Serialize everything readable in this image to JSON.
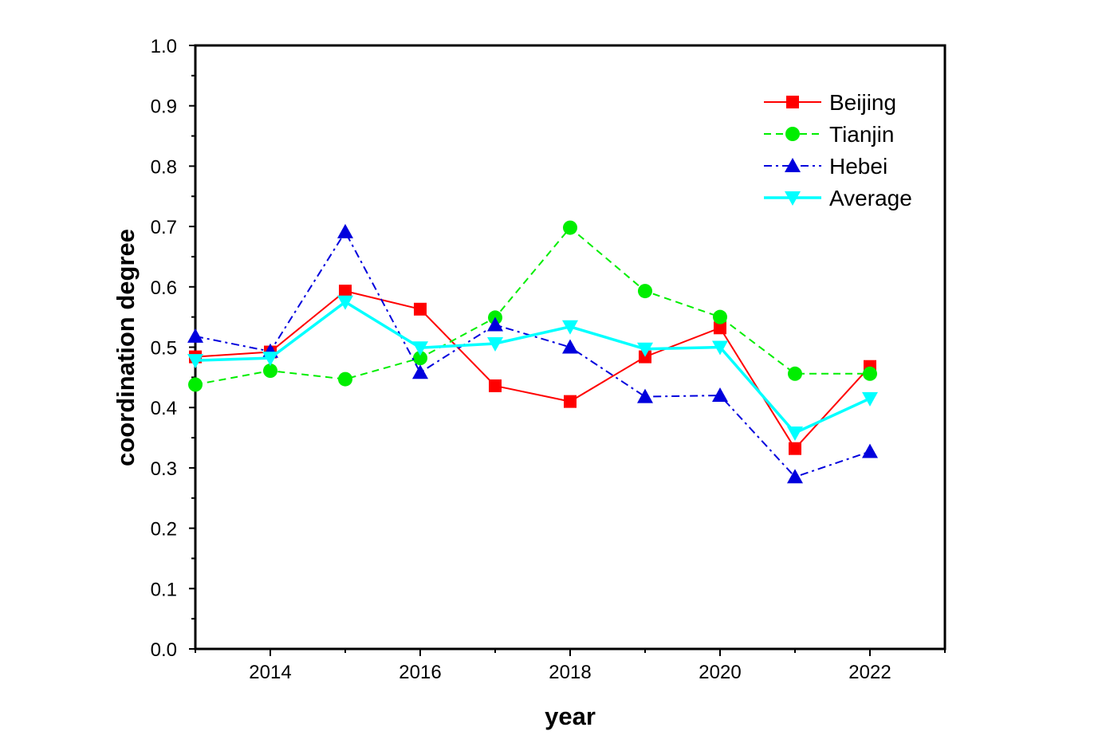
{
  "chart_data": {
    "type": "line",
    "title": "",
    "xlabel": "year",
    "ylabel": "coordination degree",
    "xlim": [
      2013,
      2023
    ],
    "ylim": [
      0.0,
      1.0
    ],
    "x_ticks": [
      2014,
      2016,
      2018,
      2020,
      2022
    ],
    "y_ticks": [
      0.0,
      0.1,
      0.2,
      0.3,
      0.4,
      0.5,
      0.6,
      0.7,
      0.8,
      0.9,
      1.0
    ],
    "x_tick_labels": [
      "2014",
      "2016",
      "2018",
      "2020",
      "2022"
    ],
    "y_tick_labels": [
      "0.0",
      "0.1",
      "0.2",
      "0.3",
      "0.4",
      "0.5",
      "0.6",
      "0.7",
      "0.8",
      "0.9",
      "1.0"
    ],
    "grid": false,
    "legend_position": "top-right",
    "x": [
      2013,
      2014,
      2015,
      2016,
      2017,
      2018,
      2019,
      2020,
      2021,
      2022
    ],
    "series": [
      {
        "name": "Beijing",
        "values": [
          0.484,
          0.492,
          0.593,
          0.563,
          0.436,
          0.41,
          0.484,
          0.532,
          0.332,
          0.468
        ],
        "color": "#ff0000",
        "line_style": "solid",
        "marker": "square"
      },
      {
        "name": "Tianjin",
        "values": [
          0.438,
          0.461,
          0.447,
          0.482,
          0.549,
          0.698,
          0.593,
          0.55,
          0.456,
          0.456
        ],
        "color": "#00ee00",
        "line_style": "dashed",
        "marker": "circle"
      },
      {
        "name": "Hebei",
        "values": [
          0.518,
          0.493,
          0.691,
          0.458,
          0.537,
          0.5,
          0.418,
          0.42,
          0.285,
          0.327
        ],
        "color": "#0000dd",
        "line_style": "dashdot",
        "marker": "triangle-up"
      },
      {
        "name": "Average",
        "values": [
          0.478,
          0.482,
          0.575,
          0.499,
          0.506,
          0.534,
          0.497,
          0.5,
          0.358,
          0.415
        ],
        "color": "#00ffff",
        "line_style": "solid",
        "marker": "triangle-down"
      }
    ]
  }
}
